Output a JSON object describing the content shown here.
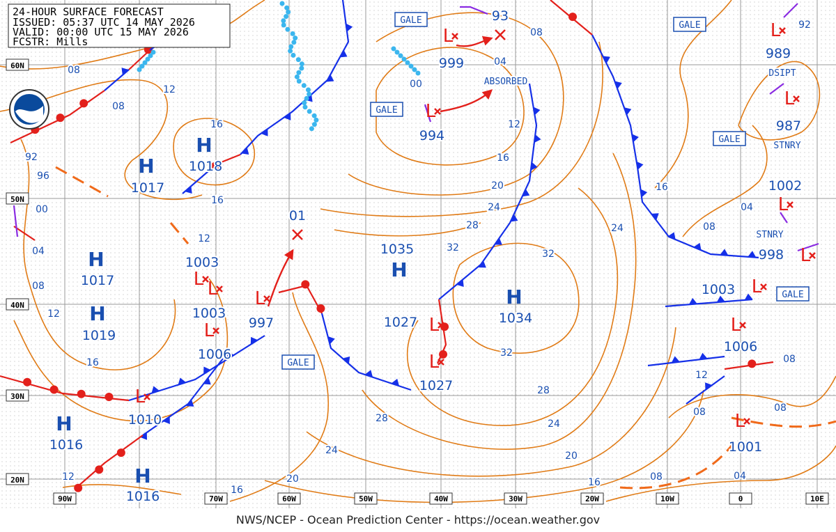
{
  "header": {
    "lines": [
      "24-HOUR SURFACE FORECAST",
      "ISSUED: 05:37 UTC 14 MAY 2026",
      "VALID: 00:00 UTC 15 MAY 2026",
      "FCSTR: Mills"
    ]
  },
  "latitude_labels": [
    "60N",
    "50N",
    "40N",
    "30N",
    "20N"
  ],
  "longitude_labels": [
    "90W",
    "70W",
    "60W",
    "50W",
    "40W",
    "30W",
    "20W",
    "10W",
    "0",
    "10E"
  ],
  "high_symbol": "H",
  "low_symbol": "L",
  "highs": [
    "1017",
    "1018",
    "1017",
    "1019",
    "1016",
    "1016",
    "1035",
    "1034"
  ],
  "low_pressures": [
    "93",
    "999",
    "994",
    "989",
    "987",
    "1002",
    "998",
    "1003",
    "1006",
    "1001",
    "01",
    "1003",
    "1003",
    "997",
    "1006",
    "1010",
    "1027",
    "1027",
    "92"
  ],
  "isobar_labels": [
    "08",
    "12",
    "08",
    "16",
    "92",
    "96",
    "00",
    "04",
    "08",
    "12",
    "16",
    "12",
    "16",
    "00",
    "04",
    "08",
    "12",
    "16",
    "20",
    "24",
    "28",
    "32",
    "32",
    "24",
    "32",
    "28",
    "24",
    "20",
    "16",
    "08",
    "04",
    "08",
    "12",
    "08",
    "08",
    "08",
    "04",
    "16",
    "28",
    "24",
    "20",
    "16",
    "12"
  ],
  "annotations": [
    "GALE",
    "GALE",
    "GALE",
    "GALE",
    "GALE",
    "GALE",
    "ABSORBED",
    "DSIPT",
    "STNRY",
    "STNRY"
  ],
  "footer": "NWS/NCEP - Ocean Prediction Center - https://ocean.weather.gov"
}
